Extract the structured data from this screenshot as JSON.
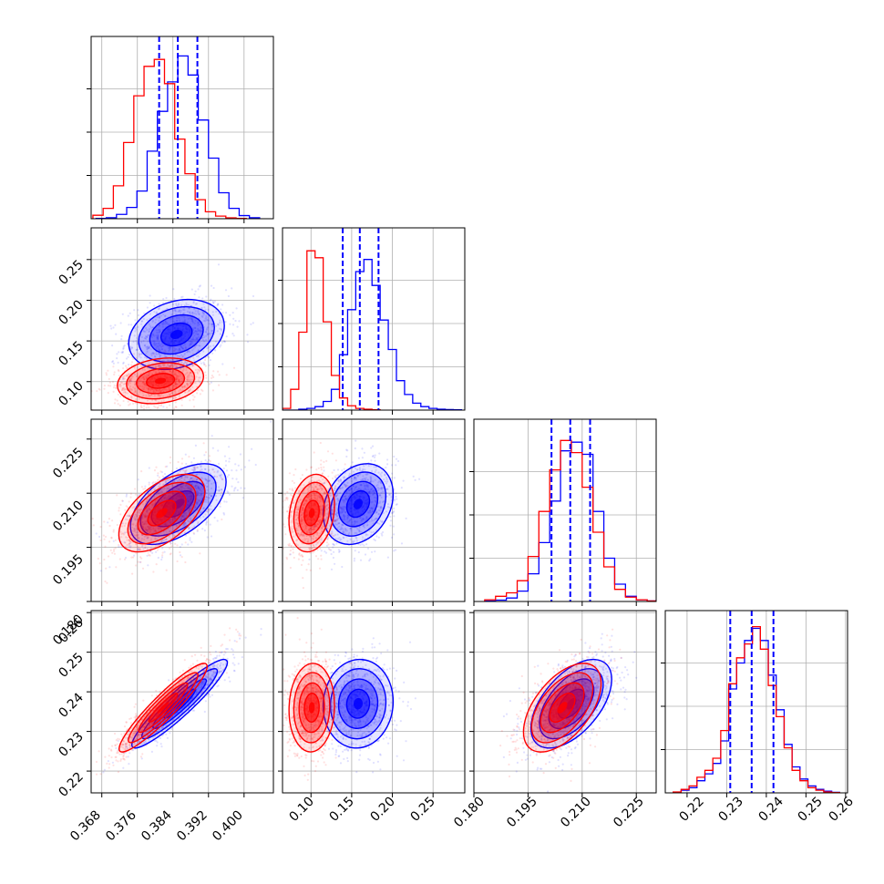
{
  "chart_data": [
    {
      "type": "histogram",
      "panel": "p1-histogram",
      "x": {
        "lim": [
          0.3656,
          0.4066
        ],
        "ticks": [
          0.368,
          0.376,
          0.384,
          0.392,
          0.4
        ]
      },
      "quantile_lines": [
        0.3809,
        0.3851,
        0.3895
      ],
      "series": [
        {
          "color": "#0000ff",
          "bins": [
            0.3667,
            0.369,
            0.3713,
            0.3736,
            0.3759,
            0.3782,
            0.3805,
            0.3828,
            0.3851,
            0.3874,
            0.3897,
            0.392,
            0.3943,
            0.3966,
            0.3989,
            0.4012
          ],
          "values": [
            0.2,
            0.6,
            2.5,
            6.5,
            16,
            39,
            62,
            79,
            94,
            83,
            57,
            35,
            15,
            6,
            1.8,
            0.6
          ]
        },
        {
          "color": "#ff0000",
          "bins": [
            0.366,
            0.3683,
            0.3706,
            0.3729,
            0.3752,
            0.3775,
            0.3798,
            0.3821,
            0.3844,
            0.3867,
            0.389,
            0.3913,
            0.3936,
            0.3959,
            0.3982
          ],
          "values": [
            2,
            6,
            19,
            44,
            71,
            88,
            92,
            78,
            46,
            26,
            11,
            4,
            1.5,
            0.5,
            0.2
          ]
        }
      ]
    },
    {
      "type": "scatter-density",
      "panel": "p2-vs-p1",
      "x": {
        "lim": [
          0.3656,
          0.4066
        ],
        "ticks": [
          0.368,
          0.376,
          0.384,
          0.392,
          0.4
        ]
      },
      "y": {
        "lim": [
          0.065,
          0.289
        ],
        "ticks": [
          0.1,
          0.15,
          0.2,
          0.25
        ]
      },
      "series": [
        {
          "color": "#0000ff",
          "center": [
            0.3848,
            0.158
          ],
          "sd": [
            0.005,
            0.02
          ],
          "corr": 0.25
        },
        {
          "color": "#ff0000",
          "center": [
            0.3812,
            0.101
          ],
          "sd": [
            0.0045,
            0.013
          ],
          "corr": 0.2
        }
      ]
    },
    {
      "type": "histogram",
      "panel": "p2-histogram",
      "x": {
        "lim": [
          0.065,
          0.289
        ],
        "ticks": [
          0.1,
          0.15,
          0.2,
          0.25
        ]
      },
      "quantile_lines": [
        0.139,
        0.16,
        0.183
      ],
      "series": [
        {
          "color": "#0000ff",
          "bins": [
            0.065,
            0.075,
            0.085,
            0.095,
            0.105,
            0.115,
            0.125,
            0.135,
            0.145,
            0.155,
            0.165,
            0.175,
            0.185,
            0.195,
            0.205,
            0.215,
            0.225,
            0.235,
            0.245,
            0.255,
            0.265,
            0.275
          ],
          "values": [
            0,
            0,
            0.5,
            1,
            2,
            5,
            12,
            32,
            58,
            80,
            87,
            72,
            52,
            35,
            17,
            9,
            4,
            2,
            1,
            0.5,
            0.3,
            0.2
          ]
        },
        {
          "color": "#ff0000",
          "bins": [
            0.065,
            0.075,
            0.085,
            0.095,
            0.105,
            0.115,
            0.125,
            0.135,
            0.145,
            0.155,
            0.165,
            0.175
          ],
          "values": [
            1,
            12,
            45,
            92,
            88,
            51,
            20,
            7,
            2.5,
            1,
            0.5,
            0.2
          ]
        }
      ]
    },
    {
      "type": "scatter-density",
      "panel": "p3-vs-p1",
      "x": {
        "lim": [
          0.3656,
          0.4066
        ],
        "ticks": [
          0.368,
          0.376,
          0.384,
          0.392,
          0.4
        ]
      },
      "y": {
        "lim": [
          0.18,
          0.2305
        ],
        "ticks": [
          0.18,
          0.195,
          0.21,
          0.225
        ]
      },
      "series": [
        {
          "color": "#0000ff",
          "center": [
            0.3852,
            0.207
          ],
          "sd": [
            0.005,
            0.0052
          ],
          "corr": 0.55
        },
        {
          "color": "#ff0000",
          "center": [
            0.3815,
            0.2045
          ],
          "sd": [
            0.0045,
            0.005
          ],
          "corr": 0.55
        }
      ]
    },
    {
      "type": "scatter-density",
      "panel": "p3-vs-p2",
      "x": {
        "lim": [
          0.065,
          0.289
        ],
        "ticks": [
          0.1,
          0.15,
          0.2,
          0.25
        ]
      },
      "y": {
        "lim": [
          0.18,
          0.2305
        ],
        "ticks": [
          0.18,
          0.195,
          0.21,
          0.225
        ]
      },
      "series": [
        {
          "color": "#0000ff",
          "center": [
            0.158,
            0.207
          ],
          "sd": [
            0.02,
            0.0052
          ],
          "corr": 0.25
        },
        {
          "color": "#ff0000",
          "center": [
            0.101,
            0.2045
          ],
          "sd": [
            0.013,
            0.005
          ],
          "corr": 0.2
        }
      ]
    },
    {
      "type": "histogram",
      "panel": "p3-histogram",
      "x": {
        "lim": [
          0.18,
          0.2305
        ],
        "ticks": [
          0.18,
          0.195,
          0.21,
          0.225
        ]
      },
      "quantile_lines": [
        0.2015,
        0.2067,
        0.2122
      ],
      "series": [
        {
          "color": "#0000ff",
          "bins": [
            0.183,
            0.186,
            0.189,
            0.192,
            0.195,
            0.198,
            0.201,
            0.204,
            0.207,
            0.21,
            0.213,
            0.216,
            0.219,
            0.222,
            0.225,
            0.228
          ],
          "values": [
            0.3,
            0.8,
            2,
            6,
            16,
            34,
            58,
            87,
            92,
            85,
            52,
            25,
            10,
            3,
            1,
            0.3
          ]
        },
        {
          "color": "#ff0000",
          "bins": [
            0.183,
            0.186,
            0.189,
            0.192,
            0.195,
            0.198,
            0.201,
            0.204,
            0.207,
            0.21,
            0.213,
            0.216,
            0.219,
            0.222,
            0.225,
            0.228
          ],
          "values": [
            1,
            3,
            5,
            12,
            26,
            52,
            76,
            93,
            86,
            66,
            40,
            20,
            7,
            2.5,
            1,
            0.3
          ]
        }
      ]
    },
    {
      "type": "scatter-density",
      "panel": "p4-vs-p1",
      "x": {
        "lim": [
          0.3656,
          0.4066
        ],
        "ticks": [
          0.368,
          0.376,
          0.384,
          0.392,
          0.4
        ]
      },
      "y": {
        "lim": [
          0.2145,
          0.2605
        ],
        "ticks": [
          0.22,
          0.23,
          0.24,
          0.25,
          0.26
        ]
      },
      "series": [
        {
          "color": "#0000ff",
          "center": [
            0.3855,
            0.237
          ],
          "sd": [
            0.005,
            0.0052
          ],
          "corr": 0.93
        },
        {
          "color": "#ff0000",
          "center": [
            0.3818,
            0.236
          ],
          "sd": [
            0.0046,
            0.0052
          ],
          "corr": 0.93
        }
      ]
    },
    {
      "type": "scatter-density",
      "panel": "p4-vs-p2",
      "x": {
        "lim": [
          0.065,
          0.289
        ],
        "ticks": [
          0.1,
          0.15,
          0.2,
          0.25
        ]
      },
      "y": {
        "lim": [
          0.2145,
          0.2605
        ],
        "ticks": [
          0.22,
          0.23,
          0.24,
          0.25,
          0.26
        ]
      },
      "series": [
        {
          "color": "#0000ff",
          "center": [
            0.158,
            0.237
          ],
          "sd": [
            0.02,
            0.0052
          ],
          "corr": 0.05
        },
        {
          "color": "#ff0000",
          "center": [
            0.101,
            0.236
          ],
          "sd": [
            0.013,
            0.0052
          ],
          "corr": 0.05
        }
      ]
    },
    {
      "type": "scatter-density",
      "panel": "p4-vs-p3",
      "x": {
        "lim": [
          0.18,
          0.2305
        ],
        "ticks": [
          0.18,
          0.195,
          0.21,
          0.225
        ]
      },
      "y": {
        "lim": [
          0.2145,
          0.2605
        ],
        "ticks": [
          0.22,
          0.23,
          0.24,
          0.25,
          0.26
        ]
      },
      "series": [
        {
          "color": "#0000ff",
          "center": [
            0.207,
            0.237
          ],
          "sd": [
            0.0052,
            0.0052
          ],
          "corr": 0.55
        },
        {
          "color": "#ff0000",
          "center": [
            0.2045,
            0.236
          ],
          "sd": [
            0.005,
            0.0052
          ],
          "corr": 0.55
        }
      ]
    },
    {
      "type": "histogram",
      "panel": "p4-histogram",
      "x": {
        "lim": [
          0.2145,
          0.2605
        ],
        "ticks": [
          0.22,
          0.23,
          0.24,
          0.25,
          0.26
        ]
      },
      "quantile_lines": [
        0.2309,
        0.2363,
        0.2418
      ],
      "series": [
        {
          "color": "#0000ff",
          "bins": [
            0.2165,
            0.2185,
            0.2205,
            0.2225,
            0.2245,
            0.2265,
            0.2285,
            0.2305,
            0.2325,
            0.2345,
            0.2365,
            0.2385,
            0.2405,
            0.2425,
            0.2445,
            0.2465,
            0.2485,
            0.2505,
            0.2525,
            0.2545,
            0.2565
          ],
          "values": [
            0.3,
            1.5,
            3,
            7,
            11,
            17,
            30,
            60,
            75,
            88,
            95,
            88,
            68,
            48,
            28,
            15,
            8,
            4,
            2,
            1,
            0.3
          ]
        },
        {
          "color": "#ff0000",
          "bins": [
            0.2165,
            0.2185,
            0.2205,
            0.2225,
            0.2245,
            0.2265,
            0.2285,
            0.2305,
            0.2325,
            0.2345,
            0.2365,
            0.2385,
            0.2405,
            0.2425,
            0.2445,
            0.2465,
            0.2485,
            0.2505,
            0.2525,
            0.2545,
            0.2565
          ],
          "values": [
            0.5,
            2,
            4,
            9,
            13,
            20,
            36,
            63,
            78,
            86,
            96,
            83,
            62,
            44,
            26,
            13,
            7,
            3,
            1.5,
            0.5,
            0.2
          ]
        }
      ]
    }
  ],
  "grid": true,
  "colors": {
    "blue": "#0000ff",
    "red": "#ff0000",
    "frame": "#000000",
    "grid": "#b0b0b0"
  },
  "tick_labels": {
    "x": {
      "col1": [
        "0.368",
        "0.376",
        "0.384",
        "0.392",
        "0.400"
      ],
      "col2": [
        "0.10",
        "0.15",
        "0.20",
        "0.25"
      ],
      "col3": [
        "0.180",
        "0.195",
        "0.210",
        "0.225"
      ],
      "col4": [
        "0.22",
        "0.23",
        "0.24",
        "0.25",
        "0.26"
      ]
    },
    "y": {
      "row2": [
        "0.10",
        "0.15",
        "0.20",
        "0.25"
      ],
      "row3": [
        "0.180",
        "0.195",
        "0.210",
        "0.225"
      ],
      "row4": [
        "0.22",
        "0.23",
        "0.24",
        "0.25",
        "0.26"
      ]
    }
  }
}
